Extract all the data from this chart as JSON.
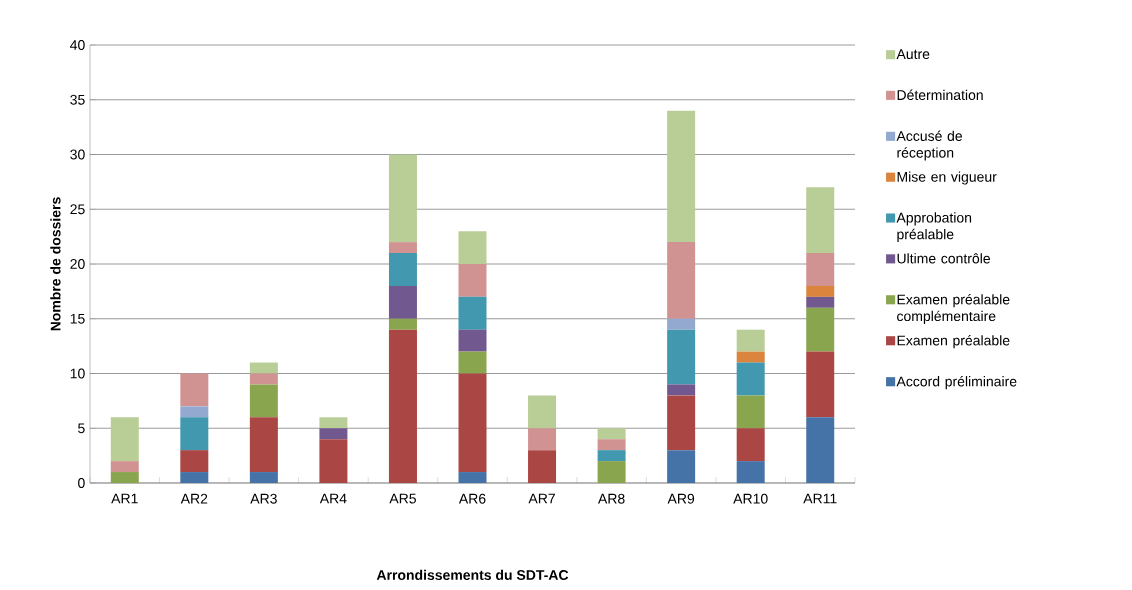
{
  "chart_data": {
    "type": "bar",
    "stacked": true,
    "xlabel": "Arrondissements du SDT-AC",
    "ylabel": "Nombre de dossiers",
    "categories": [
      "AR1",
      "AR2",
      "AR3",
      "AR4",
      "AR5",
      "AR6",
      "AR7",
      "AR8",
      "AR9",
      "AR10",
      "AR11"
    ],
    "series": [
      {
        "name": "Accord préliminaire",
        "color": "#4572a7",
        "values": [
          0,
          1,
          1,
          0,
          0,
          1,
          0,
          0,
          3,
          2,
          6
        ]
      },
      {
        "name": "Examen préalable",
        "color": "#aa4643",
        "values": [
          0,
          2,
          5,
          4,
          14,
          9,
          3,
          0,
          5,
          3,
          6
        ]
      },
      {
        "name": "Examen préalable complémentaire",
        "color": "#89a54e",
        "values": [
          1,
          0,
          3,
          0,
          1,
          2,
          0,
          2,
          0,
          3,
          4
        ]
      },
      {
        "name": "Ultime contrôle",
        "color": "#71588f",
        "values": [
          0,
          0,
          0,
          1,
          3,
          2,
          0,
          0,
          1,
          0,
          1
        ]
      },
      {
        "name": "Approbation préalable",
        "color": "#4198af",
        "values": [
          0,
          3,
          0,
          0,
          3,
          3,
          0,
          1,
          5,
          3,
          0
        ]
      },
      {
        "name": "Mise en vigueur",
        "color": "#db843d",
        "values": [
          0,
          0,
          0,
          0,
          0,
          0,
          0,
          0,
          0,
          1,
          1
        ]
      },
      {
        "name": "Accusé de réception",
        "color": "#93a9cf",
        "values": [
          0,
          1,
          0,
          0,
          0,
          0,
          0,
          0,
          1,
          0,
          0
        ]
      },
      {
        "name": "Détermination",
        "color": "#d19392",
        "values": [
          1,
          3,
          1,
          0,
          1,
          3,
          2,
          1,
          7,
          0,
          3
        ]
      },
      {
        "name": "Autre",
        "color": "#b9cd96",
        "values": [
          4,
          0,
          1,
          1,
          8,
          3,
          3,
          1,
          12,
          2,
          6
        ]
      }
    ],
    "ylim": [
      0,
      40
    ],
    "yticks": [
      0,
      5,
      10,
      15,
      20,
      25,
      30,
      35,
      40
    ],
    "grid": "y",
    "legend": "right"
  }
}
